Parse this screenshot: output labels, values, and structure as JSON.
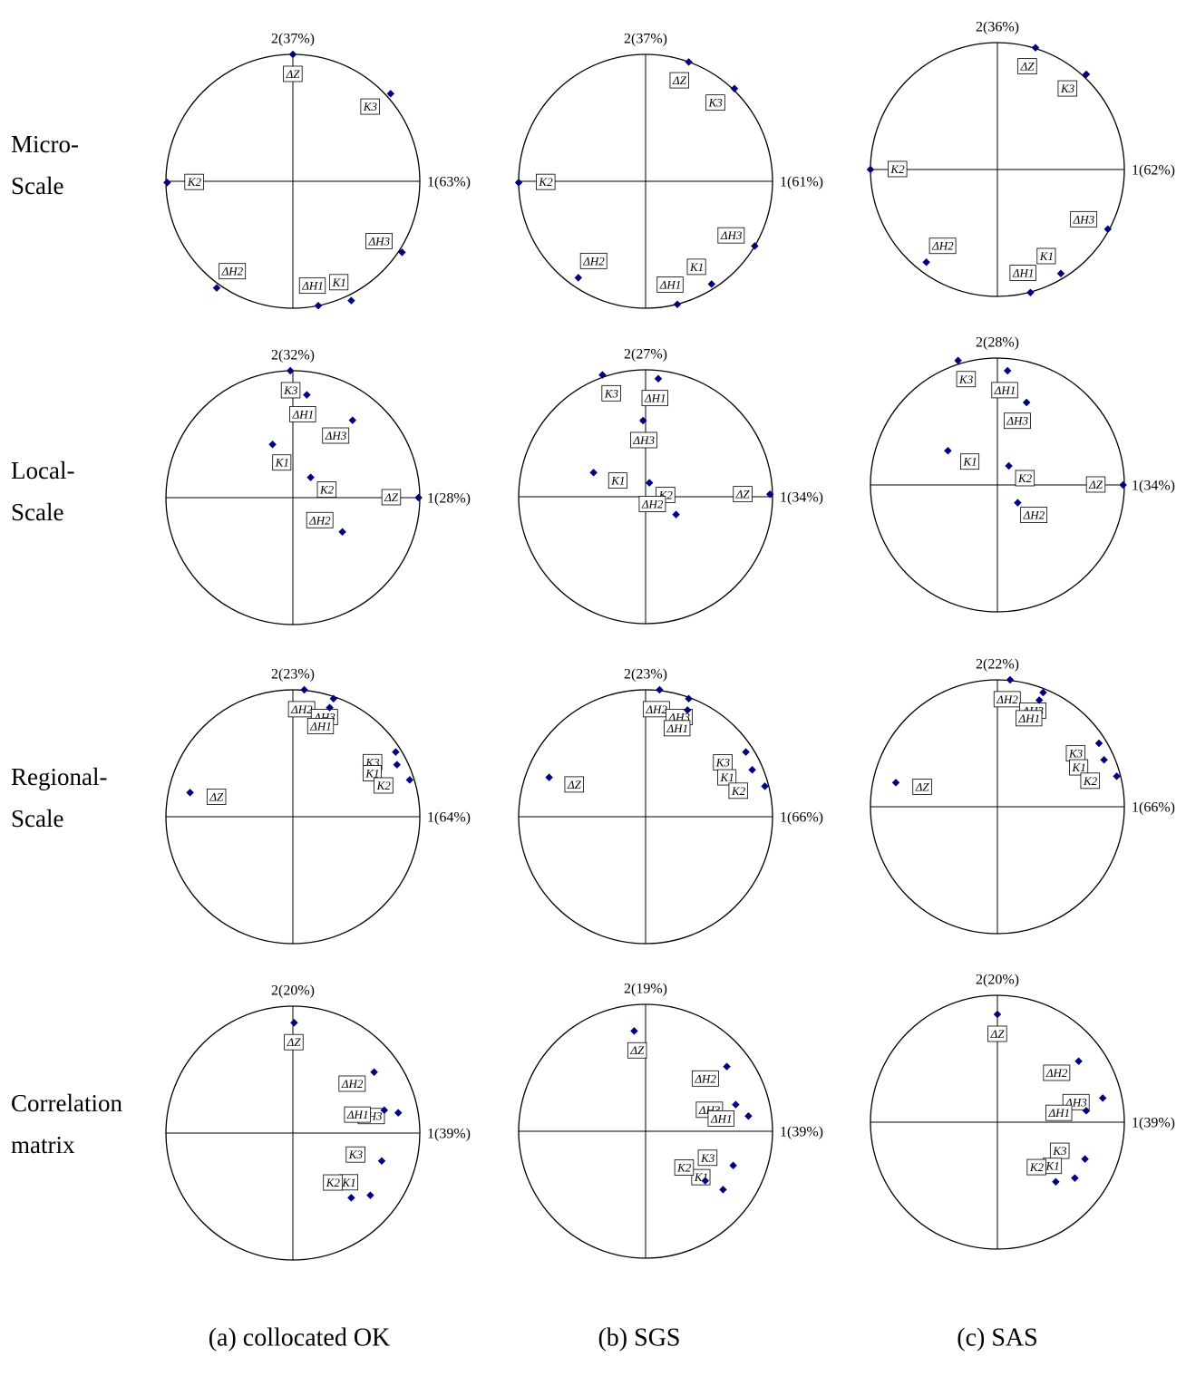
{
  "row_labels": [
    [
      "Micro-",
      "Scale"
    ],
    [
      "Local-",
      "Scale"
    ],
    [
      "Regional-",
      "Scale"
    ],
    [
      "Correlation",
      "matrix"
    ]
  ],
  "column_labels": [
    "(a) collocated OK",
    "(b) SGS",
    "(c) SAS"
  ],
  "chart_data": [
    {
      "type": "scatter",
      "xlabel": "1(63%)",
      "ylabel": "2(37%)",
      "xlim": [
        -1,
        1
      ],
      "ylim": [
        -1,
        1
      ],
      "color": "#000080",
      "labels": [
        "ΔZ",
        "K3",
        "K2",
        "ΔH3",
        "K1",
        "ΔH1",
        "ΔH2"
      ],
      "x": [
        0,
        0.77,
        -0.99,
        0.86,
        0.46,
        0.2,
        -0.6
      ],
      "values": [
        1.0,
        0.69,
        -0.01,
        -0.56,
        -0.94,
        -0.98,
        -0.84
      ]
    },
    {
      "type": "scatter",
      "xlabel": "1(61%)",
      "ylabel": "2(37%)",
      "xlim": [
        -1,
        1
      ],
      "ylim": [
        -1,
        1
      ],
      "color": "#000080",
      "labels": [
        "ΔZ",
        "K3",
        "K2",
        "ΔH3",
        "K1",
        "ΔH1",
        "ΔH2"
      ],
      "x": [
        0.34,
        0.7,
        -1.0,
        0.86,
        0.52,
        0.25,
        -0.53
      ],
      "values": [
        0.94,
        0.73,
        -0.01,
        -0.51,
        -0.81,
        -0.97,
        -0.76
      ]
    },
    {
      "type": "scatter",
      "xlabel": "1(62%)",
      "ylabel": "2(36%)",
      "xlim": [
        -1,
        1
      ],
      "ylim": [
        -1,
        1
      ],
      "color": "#000080",
      "labels": [
        "ΔZ",
        "K3",
        "K2",
        "ΔH3",
        "K1",
        "ΔH1",
        "ΔH2"
      ],
      "x": [
        0.3,
        0.7,
        -1.0,
        0.87,
        0.5,
        0.26,
        -0.56
      ],
      "values": [
        0.96,
        0.75,
        0,
        -0.47,
        -0.82,
        -0.97,
        -0.73
      ]
    },
    {
      "type": "scatter",
      "xlabel": "1(28%)",
      "ylabel": "2(32%)",
      "xlim": [
        -1,
        1
      ],
      "ylim": [
        -1,
        1
      ],
      "color": "#000080",
      "labels": [
        "K3",
        "ΔH1",
        "ΔH3",
        "K1",
        "K2",
        "ΔZ",
        "ΔH2"
      ],
      "x": [
        -0.02,
        0.11,
        0.47,
        -0.16,
        0.14,
        0.99,
        0.39
      ],
      "values": [
        1.0,
        0.81,
        0.61,
        0.42,
        0.16,
        0,
        -0.27
      ]
    },
    {
      "type": "scatter",
      "xlabel": "1(34%)",
      "ylabel": "2(27%)",
      "xlim": [
        -1,
        1
      ],
      "ylim": [
        -1,
        1
      ],
      "color": "#000080",
      "labels": [
        "K3",
        "ΔH1",
        "ΔH3",
        "K1",
        "K2",
        "ΔZ",
        "ΔH2"
      ],
      "x": [
        -0.34,
        0.1,
        -0.02,
        -0.41,
        0.03,
        0.98,
        0.24
      ],
      "values": [
        0.96,
        0.93,
        0.6,
        0.19,
        0.11,
        0.02,
        -0.14
      ]
    },
    {
      "type": "scatter",
      "xlabel": "1(34%)",
      "ylabel": "2(28%)",
      "xlim": [
        -1,
        1
      ],
      "ylim": [
        -1,
        1
      ],
      "color": "#000080",
      "labels": [
        "K3",
        "ΔH1",
        "ΔH3",
        "K1",
        "K2",
        "ΔZ",
        "ΔH2"
      ],
      "x": [
        -0.31,
        0.08,
        0.23,
        -0.39,
        0.09,
        0.99,
        0.16
      ],
      "values": [
        0.98,
        0.9,
        0.65,
        0.27,
        0.15,
        0,
        -0.14
      ]
    },
    {
      "type": "scatter",
      "xlabel": "1(64%)",
      "ylabel": "2(23%)",
      "xlim": [
        -1,
        1
      ],
      "ylim": [
        -1,
        1
      ],
      "color": "#000080",
      "labels": [
        "ΔH2",
        "ΔH3",
        "ΔH1",
        "K3",
        "K1",
        "K2",
        "ΔZ"
      ],
      "x": [
        0.09,
        0.32,
        0.29,
        0.81,
        0.82,
        0.92,
        -0.81
      ],
      "values": [
        1.0,
        0.93,
        0.86,
        0.51,
        0.41,
        0.29,
        0.19
      ]
    },
    {
      "type": "scatter",
      "xlabel": "1(66%)",
      "ylabel": "2(23%)",
      "xlim": [
        -1,
        1
      ],
      "ylim": [
        -1,
        1
      ],
      "color": "#000080",
      "labels": [
        "ΔH2",
        "ΔH3",
        "ΔH1",
        "K3",
        "K1",
        "K2",
        "ΔZ"
      ],
      "x": [
        0.11,
        0.34,
        0.33,
        0.79,
        0.84,
        0.94,
        -0.76
      ],
      "values": [
        1.0,
        0.93,
        0.84,
        0.51,
        0.37,
        0.24,
        0.31
      ]
    },
    {
      "type": "scatter",
      "xlabel": "1(66%)",
      "ylabel": "2(22%)",
      "xlim": [
        -1,
        1
      ],
      "ylim": [
        -1,
        1
      ],
      "color": "#000080",
      "labels": [
        "ΔH2",
        "ΔH3",
        "ΔH1",
        "K3",
        "K1",
        "K2",
        "ΔZ"
      ],
      "x": [
        0.1,
        0.36,
        0.33,
        0.8,
        0.84,
        0.94,
        -0.8
      ],
      "values": [
        1.0,
        0.9,
        0.84,
        0.5,
        0.37,
        0.24,
        0.19
      ]
    },
    {
      "type": "scatter",
      "xlabel": "1(39%)",
      "ylabel": "2(20%)",
      "xlim": [
        -1,
        1
      ],
      "ylim": [
        -1,
        1
      ],
      "color": "#000080",
      "labels": [
        "ΔZ",
        "ΔH2",
        "ΔH3",
        "ΔH1",
        "K3",
        "K1",
        "K2"
      ],
      "x": [
        0.01,
        0.64,
        0.83,
        0.72,
        0.7,
        0.61,
        0.46
      ],
      "values": [
        0.87,
        0.48,
        0.16,
        0.18,
        -0.22,
        -0.49,
        -0.51
      ]
    },
    {
      "type": "scatter",
      "xlabel": "1(39%)",
      "ylabel": "2(19%)",
      "xlim": [
        -1,
        1
      ],
      "ylim": [
        -1,
        1
      ],
      "color": "#000080",
      "labels": [
        "ΔZ",
        "ΔH2",
        "ΔH3",
        "ΔH1",
        "K3",
        "K1",
        "K2"
      ],
      "x": [
        -0.09,
        0.64,
        0.71,
        0.81,
        0.69,
        0.61,
        0.47
      ],
      "values": [
        0.79,
        0.51,
        0.21,
        0.12,
        -0.27,
        -0.46,
        -0.39
      ]
    },
    {
      "type": "scatter",
      "xlabel": "1(39%)",
      "ylabel": "2(20%)",
      "xlim": [
        -1,
        1
      ],
      "ylim": [
        -1,
        1
      ],
      "color": "#000080",
      "labels": [
        "ΔZ",
        "ΔH2",
        "ΔH3",
        "ΔH1",
        "K3",
        "K1",
        "K2"
      ],
      "x": [
        0,
        0.64,
        0.83,
        0.7,
        0.69,
        0.61,
        0.46
      ],
      "values": [
        0.85,
        0.48,
        0.19,
        0.09,
        -0.29,
        -0.44,
        -0.47
      ]
    }
  ]
}
